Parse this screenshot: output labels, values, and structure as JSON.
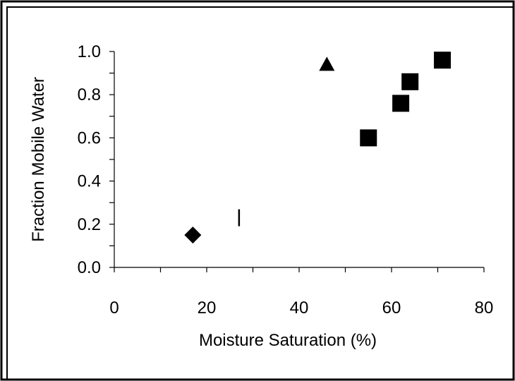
{
  "chart_data": {
    "type": "scatter",
    "title": "",
    "xlabel": "Moisture Saturation (%)",
    "ylabel": "Fraction Mobile Water",
    "xlim": [
      0,
      80
    ],
    "ylim": [
      0.0,
      1.0
    ],
    "x_ticks": [
      "0",
      "20",
      "40",
      "60",
      "80"
    ],
    "y_ticks": [
      "0.0",
      "0.2",
      "0.4",
      "0.6",
      "0.8",
      "1.0"
    ],
    "grid": false,
    "legend": "none",
    "series": [
      {
        "marker": "diamond",
        "color": "#000000",
        "points": [
          {
            "x": 17,
            "y": 0.15
          }
        ]
      },
      {
        "marker": "vertical-bar",
        "color": "#000000",
        "points": [
          {
            "x": 27,
            "y": 0.23
          }
        ]
      },
      {
        "marker": "triangle",
        "color": "#000000",
        "points": [
          {
            "x": 46,
            "y": 0.94
          }
        ]
      },
      {
        "marker": "square",
        "color": "#000000",
        "points": [
          {
            "x": 55,
            "y": 0.6
          },
          {
            "x": 62,
            "y": 0.76
          },
          {
            "x": 64,
            "y": 0.86
          },
          {
            "x": 71,
            "y": 0.96
          }
        ]
      }
    ]
  }
}
